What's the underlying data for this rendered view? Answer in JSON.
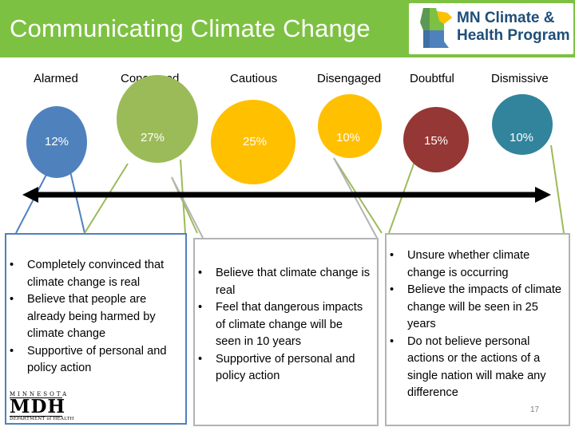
{
  "header": {
    "title": "Communicating Climate Change",
    "logo": {
      "line1": "MN Climate &",
      "line2": "Health Program"
    }
  },
  "segments": [
    {
      "label": "Alarmed",
      "percent": "12%",
      "color": "#4f81bd"
    },
    {
      "label": "Concerned",
      "percent": "27%",
      "color": "#9bbb59"
    },
    {
      "label": "Cautious",
      "percent": "25%",
      "color": "#ffc000"
    },
    {
      "label": "Disengaged",
      "percent": "10%",
      "color": "#ffc000"
    },
    {
      "label": "Doubtful",
      "percent": "15%",
      "color": "#953735"
    },
    {
      "label": "Dismissive",
      "percent": "10%",
      "color": "#31849b"
    }
  ],
  "descriptions": {
    "left": [
      "Completely convinced that climate change is real",
      "Believe that people are already being harmed by climate change",
      "Supportive of personal and policy action"
    ],
    "middle": [
      "Believe that climate change is real",
      "Feel that dangerous impacts of climate change will be seen in 10 years",
      "Supportive of personal and policy action"
    ],
    "right": [
      "Unsure whether climate change is occurring",
      "Believe the impacts of climate change will be seen in 25 years",
      "Do not believe personal actions or the actions of a single nation will make any difference"
    ]
  },
  "footer": {
    "mdh_top": "MINNESOTA",
    "mdh_mid": "MDH",
    "mdh_bottom": "DEPARTMENT of HEALTH",
    "page_number": "17"
  }
}
